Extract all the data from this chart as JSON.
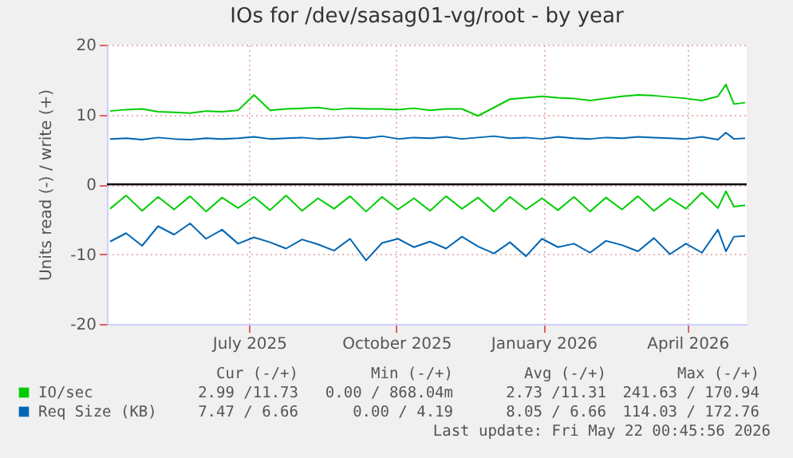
{
  "chart_data": {
    "type": "line",
    "title": "IOs for /dev/sasag01-vg/root - by year",
    "ylabel": "Units read (-) / write (+)",
    "x": [
      "2025-04-19",
      "2025-04-29",
      "2025-05-09",
      "2025-05-19",
      "2025-05-29",
      "2025-06-08",
      "2025-06-18",
      "2025-06-28",
      "2025-07-08",
      "2025-07-18",
      "2025-07-28",
      "2025-08-07",
      "2025-08-17",
      "2025-08-27",
      "2025-09-06",
      "2025-09-16",
      "2025-09-26",
      "2025-10-06",
      "2025-10-16",
      "2025-10-26",
      "2025-11-05",
      "2025-11-15",
      "2025-11-25",
      "2025-12-05",
      "2025-12-15",
      "2025-12-25",
      "2026-01-04",
      "2026-01-14",
      "2026-01-24",
      "2026-02-03",
      "2026-02-13",
      "2026-02-23",
      "2026-03-05",
      "2026-03-15",
      "2026-03-25",
      "2026-04-04",
      "2026-04-14",
      "2026-04-24",
      "2026-05-04",
      "2026-05-09",
      "2026-05-14",
      "2026-05-21"
    ],
    "series": [
      {
        "name": "IO/sec",
        "color": "#00cc00",
        "values": [
          10.5,
          10.7,
          10.8,
          10.4,
          10.3,
          10.2,
          10.5,
          10.4,
          10.6,
          12.8,
          10.6,
          10.8,
          10.9,
          11.0,
          10.7,
          10.9,
          10.8,
          10.8,
          10.7,
          10.9,
          10.6,
          10.8,
          10.8,
          9.8,
          11.0,
          12.2,
          12.4,
          12.6,
          12.4,
          12.3,
          12.0,
          12.3,
          12.6,
          12.8,
          12.7,
          12.5,
          12.3,
          12.0,
          12.6,
          14.3,
          11.5,
          11.7
        ]
      },
      {
        "color": "#00cc00",
        "values": [
          -3.5,
          -1.6,
          -3.8,
          -1.8,
          -3.6,
          -1.7,
          -3.9,
          -1.9,
          -3.4,
          -1.8,
          -3.7,
          -1.6,
          -3.8,
          -2.0,
          -3.5,
          -1.7,
          -3.9,
          -1.8,
          -3.6,
          -2.0,
          -3.8,
          -1.7,
          -3.5,
          -1.9,
          -3.9,
          -1.8,
          -3.6,
          -2.0,
          -3.7,
          -1.8,
          -3.9,
          -1.9,
          -3.6,
          -1.7,
          -3.8,
          -2.0,
          -3.5,
          -1.2,
          -3.4,
          -1.0,
          -3.2,
          -3.0
        ]
      },
      {
        "name": "Req Size (KB)",
        "color": "#0066b3",
        "values": [
          6.5,
          6.6,
          6.4,
          6.7,
          6.5,
          6.4,
          6.6,
          6.5,
          6.6,
          6.8,
          6.5,
          6.6,
          6.7,
          6.5,
          6.6,
          6.8,
          6.6,
          6.9,
          6.5,
          6.7,
          6.6,
          6.8,
          6.5,
          6.7,
          6.9,
          6.6,
          6.7,
          6.5,
          6.8,
          6.6,
          6.5,
          6.7,
          6.6,
          6.8,
          6.7,
          6.6,
          6.5,
          6.8,
          6.4,
          7.4,
          6.5,
          6.6
        ]
      },
      {
        "color": "#0066b3",
        "values": [
          -8.2,
          -7.0,
          -8.8,
          -6.0,
          -7.2,
          -5.6,
          -7.8,
          -6.5,
          -8.5,
          -7.6,
          -8.3,
          -9.2,
          -7.9,
          -8.6,
          -9.5,
          -7.8,
          -10.9,
          -8.4,
          -7.8,
          -9.0,
          -8.2,
          -9.2,
          -7.5,
          -8.9,
          -9.9,
          -8.3,
          -10.3,
          -7.8,
          -9.0,
          -8.5,
          -9.8,
          -8.1,
          -8.7,
          -9.6,
          -7.7,
          -10.0,
          -8.5,
          -9.8,
          -6.5,
          -9.6,
          -7.5,
          -7.4
        ]
      }
    ],
    "xlim": [
      "2025-04-17",
      "2026-05-22"
    ],
    "xticks": [
      {
        "value": "2025-07-15",
        "label": "July 2025"
      },
      {
        "value": "2025-10-15",
        "label": "October 2025"
      },
      {
        "value": "2026-01-15",
        "label": "January 2026"
      },
      {
        "value": "2026-04-15",
        "label": "April 2026"
      }
    ],
    "ylim": [
      -20,
      20
    ],
    "yticks": [
      -20,
      -10,
      0,
      10,
      20
    ],
    "ref_lines": [
      {
        "axis": "y",
        "value": 0,
        "color": "#000000"
      }
    ],
    "grid": true,
    "legend": "bottom",
    "annotations": [
      "Cur (-/+)",
      "Min (-/+)",
      "Avg (-/+)",
      "Max (-/+)",
      "2.99 /11.73",
      "0.00 / 868.04m",
      "2.73 /11.31",
      "241.63 / 170.94",
      "7.47 / 6.66",
      "0.00 / 4.19",
      "8.05 / 6.66",
      "114.03 / 172.76",
      "Last update: Fri May 22 00:45:56 2026"
    ]
  }
}
